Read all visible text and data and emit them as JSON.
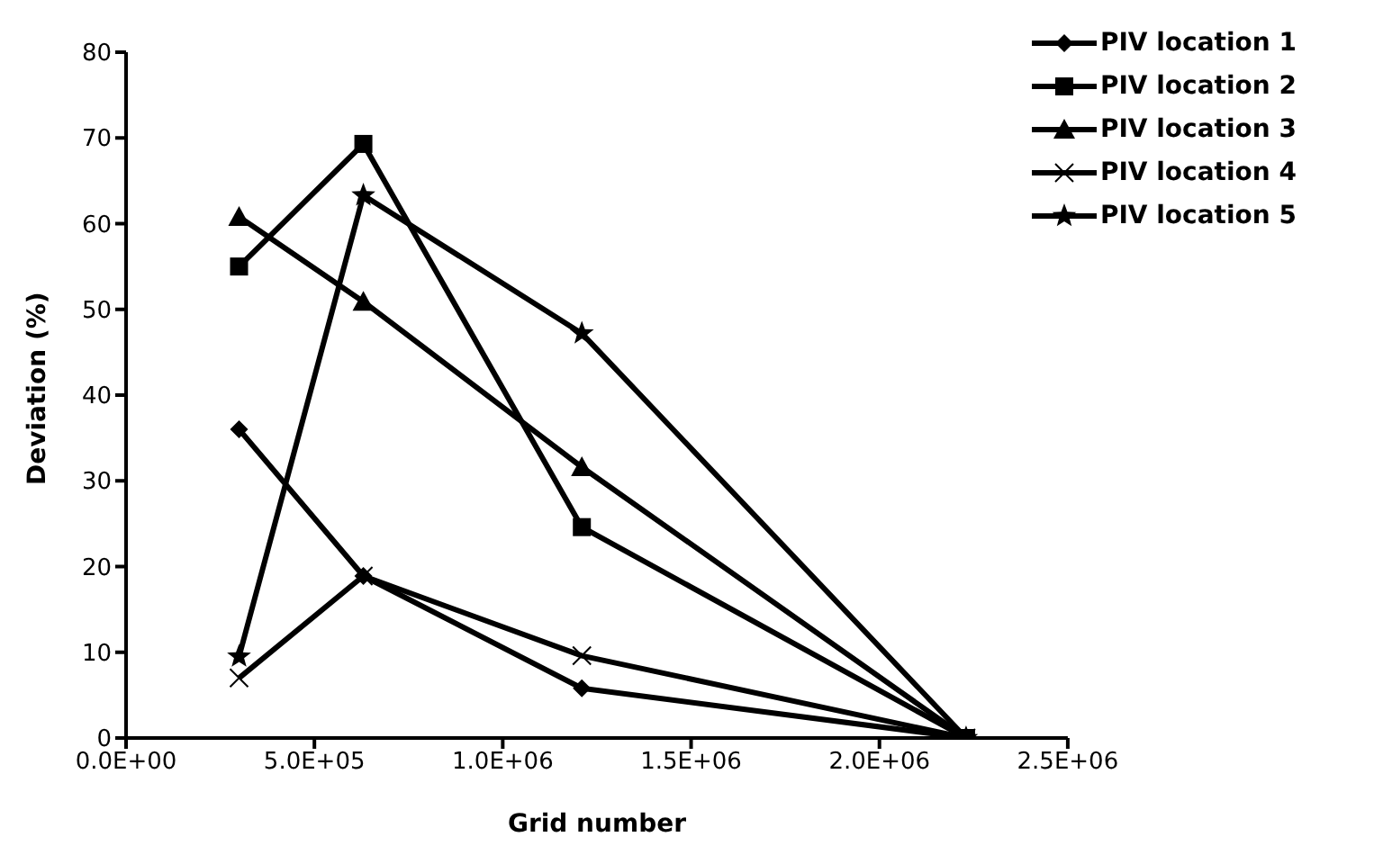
{
  "chart_data": {
    "type": "line",
    "xlabel": "Grid number",
    "ylabel": "Deviation (%)",
    "x": [
      300000,
      630000,
      1210000,
      2230000
    ],
    "series": [
      {
        "name": "PIV location 1",
        "color": "#000000",
        "marker": "diamond",
        "values": [
          36,
          18.9,
          5.8,
          0
        ]
      },
      {
        "name": "PIV location 2",
        "color": "#000000",
        "marker": "square",
        "values": [
          55,
          69.3,
          24.6,
          0
        ]
      },
      {
        "name": "PIV location 3",
        "color": "#000000",
        "marker": "triangle",
        "values": [
          60.8,
          50.9,
          31.6,
          0
        ]
      },
      {
        "name": "PIV location 4",
        "color": "#000000",
        "marker": "cross",
        "values": [
          7,
          18.9,
          9.6,
          0
        ]
      },
      {
        "name": "PIV location 5",
        "color": "#000000",
        "marker": "star",
        "values": [
          9.5,
          63.3,
          47.2,
          0
        ]
      }
    ],
    "xlim": [
      0,
      2500000
    ],
    "xticks": [
      {
        "value": 0,
        "label": "0.0E+00"
      },
      {
        "value": 500000,
        "label": "5.0E+05"
      },
      {
        "value": 1000000,
        "label": "1.0E+06"
      },
      {
        "value": 1500000,
        "label": "1.5E+06"
      },
      {
        "value": 2000000,
        "label": "2.0E+06"
      },
      {
        "value": 2500000,
        "label": "2.5E+06"
      }
    ],
    "ylim": [
      0,
      80
    ],
    "yticks": [
      0,
      10,
      20,
      30,
      40,
      50,
      60,
      70,
      80
    ],
    "grid": false,
    "legend": "top right",
    "line_style": "solid"
  }
}
